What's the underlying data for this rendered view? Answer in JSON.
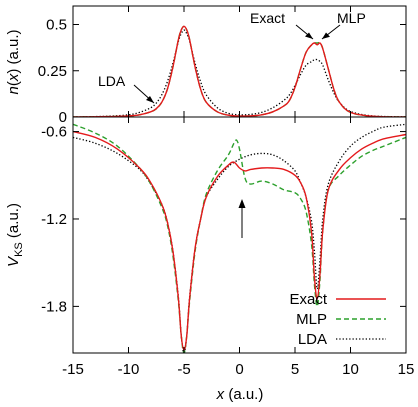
{
  "chart_data": [
    {
      "type": "line",
      "panel": "top",
      "xlabel": "",
      "ylabel": "n(x) (a.u.)",
      "xlim": [
        -15,
        15
      ],
      "ylim": [
        0,
        0.6
      ],
      "yticks": [
        "0",
        "0.25",
        "0.5"
      ],
      "annotations": [
        "Exact",
        "MLP",
        "LDA"
      ],
      "series": [
        {
          "name": "Exact",
          "color": "#e41a1c",
          "dash": "solid",
          "x": [
            -15,
            -12,
            -10,
            -9,
            -8,
            -7.5,
            -7,
            -6.5,
            -6,
            -5.5,
            -5.25,
            -5,
            -4.75,
            -4.5,
            -4,
            -3.5,
            -3,
            -2,
            -1,
            0,
            1,
            2,
            3,
            4,
            4.5,
            5,
            5.5,
            6,
            6.5,
            6.75,
            7,
            7.25,
            7.5,
            8,
            8.5,
            9,
            10,
            12,
            15
          ],
          "y": [
            0.0,
            0.002,
            0.006,
            0.012,
            0.028,
            0.045,
            0.08,
            0.15,
            0.27,
            0.42,
            0.47,
            0.49,
            0.47,
            0.42,
            0.27,
            0.15,
            0.08,
            0.028,
            0.01,
            0.005,
            0.006,
            0.012,
            0.028,
            0.06,
            0.09,
            0.16,
            0.26,
            0.35,
            0.39,
            0.4,
            0.39,
            0.4,
            0.37,
            0.26,
            0.15,
            0.08,
            0.025,
            0.004,
            0.0
          ]
        },
        {
          "name": "MLP",
          "color": "#2ca02c",
          "dash": "dashed",
          "x": [
            -15,
            -12,
            -10,
            -9,
            -8,
            -7.5,
            -7,
            -6.5,
            -6,
            -5.5,
            -5.25,
            -5,
            -4.75,
            -4.5,
            -4,
            -3.5,
            -3,
            -2,
            -1,
            0,
            1,
            2,
            3,
            4,
            4.5,
            5,
            5.5,
            6,
            6.5,
            6.75,
            7,
            7.25,
            7.5,
            8,
            8.5,
            9,
            10,
            12,
            15
          ],
          "y": [
            0.0,
            0.002,
            0.006,
            0.012,
            0.028,
            0.044,
            0.08,
            0.15,
            0.27,
            0.42,
            0.47,
            0.49,
            0.47,
            0.42,
            0.27,
            0.15,
            0.08,
            0.028,
            0.01,
            0.005,
            0.006,
            0.012,
            0.028,
            0.06,
            0.09,
            0.16,
            0.26,
            0.35,
            0.39,
            0.4,
            0.4,
            0.4,
            0.37,
            0.26,
            0.15,
            0.08,
            0.025,
            0.004,
            0.0
          ]
        },
        {
          "name": "LDA",
          "color": "#000000",
          "dash": "dotted",
          "x": [
            -15,
            -12,
            -10,
            -9,
            -8,
            -7.5,
            -7,
            -6.5,
            -6,
            -5.5,
            -5.25,
            -5,
            -4.75,
            -4.5,
            -4,
            -3.5,
            -3,
            -2,
            -1,
            0,
            1,
            2,
            3,
            4,
            4.5,
            5,
            5.5,
            6,
            6.5,
            6.75,
            7,
            7.25,
            7.5,
            8,
            8.5,
            9,
            10,
            12,
            15
          ],
          "y": [
            0.0,
            0.004,
            0.012,
            0.025,
            0.05,
            0.075,
            0.12,
            0.19,
            0.29,
            0.41,
            0.45,
            0.47,
            0.45,
            0.41,
            0.29,
            0.19,
            0.12,
            0.05,
            0.02,
            0.012,
            0.014,
            0.025,
            0.05,
            0.09,
            0.12,
            0.17,
            0.23,
            0.28,
            0.3,
            0.31,
            0.31,
            0.3,
            0.28,
            0.2,
            0.13,
            0.08,
            0.03,
            0.006,
            0.001
          ]
        }
      ]
    },
    {
      "type": "line",
      "panel": "bottom",
      "xlabel": "x (a.u.)",
      "ylabel": "V_KS (a.u.)",
      "xlim": [
        -15,
        15
      ],
      "ylim": [
        -2.12,
        -0.5
      ],
      "xticks": [
        "-15",
        "-10",
        "-5",
        "0",
        "5",
        "10",
        "15"
      ],
      "yticks": [
        "-0.6",
        "-1.2",
        "-1.8"
      ],
      "legend": "bottom-right",
      "series": [
        {
          "name": "Exact",
          "color": "#e41a1c",
          "dash": "solid",
          "x": [
            -15,
            -13,
            -11,
            -9,
            -8,
            -7,
            -6.5,
            -6,
            -5.5,
            -5.25,
            -5,
            -4.75,
            -4.5,
            -4,
            -3.5,
            -3,
            -2,
            -1,
            -0.5,
            0,
            0.5,
            1,
            2,
            3,
            4,
            5,
            5.5,
            6,
            6.5,
            6.75,
            7,
            7.25,
            7.5,
            8,
            9,
            10,
            11,
            12,
            13,
            15
          ],
          "y": [
            -0.6,
            -0.64,
            -0.72,
            -0.85,
            -0.95,
            -1.1,
            -1.22,
            -1.42,
            -1.75,
            -2.0,
            -2.1,
            -2.0,
            -1.75,
            -1.4,
            -1.2,
            -1.05,
            -0.91,
            -0.83,
            -0.81,
            -0.85,
            -0.87,
            -0.86,
            -0.85,
            -0.85,
            -0.86,
            -0.9,
            -0.95,
            -1.05,
            -1.3,
            -1.6,
            -1.75,
            -1.58,
            -1.28,
            -1.0,
            -0.86,
            -0.78,
            -0.72,
            -0.68,
            -0.65,
            -0.62
          ]
        },
        {
          "name": "MLP",
          "color": "#2ca02c",
          "dash": "dashed",
          "x": [
            -15,
            -13,
            -11,
            -9,
            -8,
            -7,
            -6.5,
            -6,
            -5.5,
            -5.25,
            -5,
            -4.75,
            -4.5,
            -4,
            -3.5,
            -3,
            -2,
            -1,
            -0.5,
            -0.25,
            0,
            0.5,
            1,
            2,
            3,
            4,
            5,
            5.5,
            6,
            6.5,
            6.75,
            7,
            7.25,
            7.5,
            8,
            9,
            10,
            11,
            12,
            13,
            15
          ],
          "y": [
            -0.55,
            -0.61,
            -0.7,
            -0.85,
            -0.96,
            -1.12,
            -1.24,
            -1.45,
            -1.77,
            -2.0,
            -2.12,
            -2.0,
            -1.77,
            -1.42,
            -1.2,
            -1.03,
            -0.87,
            -0.76,
            -0.68,
            -0.66,
            -0.72,
            -0.92,
            -0.96,
            -0.94,
            -0.96,
            -1.0,
            -1.02,
            -1.06,
            -1.15,
            -1.38,
            -1.65,
            -1.8,
            -1.62,
            -1.28,
            -1.0,
            -0.9,
            -0.83,
            -0.77,
            -0.73,
            -0.7,
            -0.64
          ]
        },
        {
          "name": "LDA",
          "color": "#000000",
          "dash": "dotted",
          "x": [
            -15,
            -13,
            -11,
            -9,
            -8,
            -7,
            -6.5,
            -6,
            -5.5,
            -5.25,
            -5,
            -4.75,
            -4.5,
            -4,
            -3.5,
            -3,
            -2,
            -1,
            0,
            1,
            2,
            3,
            4,
            5,
            5.5,
            6,
            6.5,
            6.75,
            7,
            7.25,
            7.5,
            8,
            9,
            10,
            11,
            12,
            13,
            15
          ],
          "y": [
            -0.64,
            -0.68,
            -0.75,
            -0.86,
            -0.96,
            -1.1,
            -1.22,
            -1.42,
            -1.74,
            -2.0,
            -2.12,
            -2.0,
            -1.74,
            -1.4,
            -1.2,
            -1.05,
            -0.93,
            -0.84,
            -0.79,
            -0.76,
            -0.75,
            -0.76,
            -0.8,
            -0.87,
            -0.95,
            -1.05,
            -1.22,
            -1.42,
            -1.68,
            -1.48,
            -1.2,
            -0.96,
            -0.8,
            -0.7,
            -0.64,
            -0.6,
            -0.57,
            -0.55
          ]
        }
      ]
    }
  ]
}
